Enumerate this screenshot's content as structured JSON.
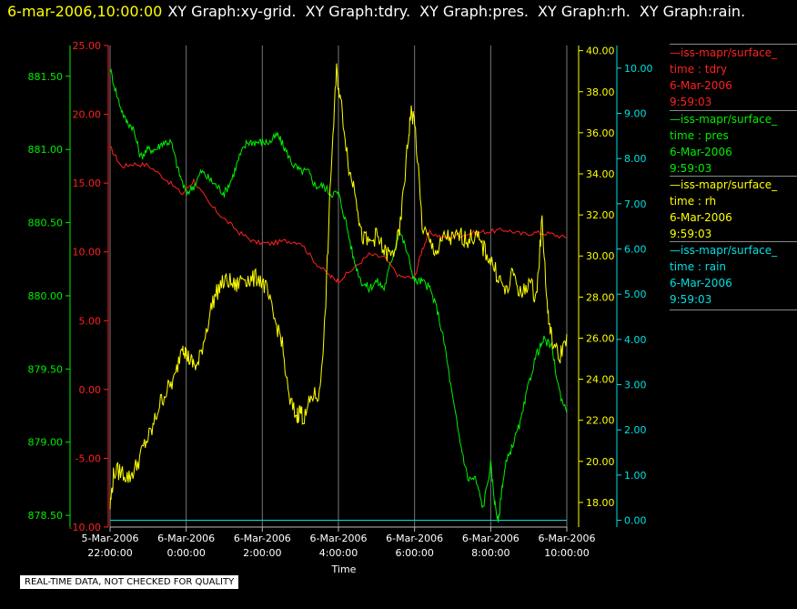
{
  "header": {
    "timestamp": "6-mar-2006,10:00:00",
    "graphs": [
      "XY Graph:xy-grid.",
      "XY Graph:tdry.",
      "XY Graph:pres.",
      "XY Graph:rh.",
      "XY Graph:rain."
    ]
  },
  "legend": [
    {
      "line": "—iss-mapr/surface_",
      "l1": "time : tdry",
      "l2": "6-Mar-2006",
      "l3": "9:59:03",
      "color": "#ff2020"
    },
    {
      "line": "—iss-mapr/surface_",
      "l1": "time : pres",
      "l2": "6-Mar-2006",
      "l3": "9:59:03",
      "color": "#00ee00"
    },
    {
      "line": "—iss-mapr/surface_",
      "l1": "time : rh",
      "l2": "6-Mar-2006",
      "l3": "9:59:03",
      "color": "#ffff00"
    },
    {
      "line": "—iss-mapr/surface_",
      "l1": "time : rain",
      "l2": "6-Mar-2006",
      "l3": "9:59:03",
      "color": "#00e0e0"
    }
  ],
  "quality_note": "REAL-TIME DATA, NOT CHECKED FOR QUALITY",
  "chart_data": {
    "type": "line",
    "xlabel": "Time",
    "x_ticks": [
      {
        "t": 0,
        "d": "5-Mar-2006",
        "h": "22:00:00"
      },
      {
        "t": 2,
        "d": "6-Mar-2006",
        "h": "0:00:00"
      },
      {
        "t": 4,
        "d": "6-Mar-2006",
        "h": "2:00:00"
      },
      {
        "t": 6,
        "d": "6-Mar-2006",
        "h": "4:00:00"
      },
      {
        "t": 8,
        "d": "6-Mar-2006",
        "h": "6:00:00"
      },
      {
        "t": 10,
        "d": "6-Mar-2006",
        "h": "8:00:00"
      },
      {
        "t": 12,
        "d": "6-Mar-2006",
        "h": "10:00:00"
      }
    ],
    "xlim": [
      0,
      12
    ],
    "grid": "vertical",
    "axes": [
      {
        "series": "pres",
        "side": "left",
        "color": "#00ee00",
        "ylim": [
          878.42,
          881.71
        ],
        "ticks": [
          "878.50",
          "879.00",
          "879.50",
          "880.00",
          "880.50",
          "881.00",
          "881.50"
        ]
      },
      {
        "series": "tdry",
        "side": "left",
        "color": "#ff2020",
        "ylim": [
          -10,
          25
        ],
        "ticks": [
          "-10.00",
          "-5.00",
          "0.00",
          "5.00",
          "10.00",
          "15.00",
          "20.00",
          "25.00"
        ]
      },
      {
        "series": "rh",
        "side": "right",
        "color": "#ffff00",
        "ylim": [
          16.8,
          40.25
        ],
        "ticks": [
          "18.00",
          "20.00",
          "22.00",
          "24.00",
          "26.00",
          "28.00",
          "30.00",
          "32.00",
          "34.00",
          "36.00",
          "38.00",
          "40.00"
        ]
      },
      {
        "series": "rain",
        "side": "right",
        "color": "#00e0e0",
        "ylim": [
          -0.15,
          10.5
        ],
        "ticks": [
          "0.00",
          "1.00",
          "2.00",
          "3.00",
          "4.00",
          "5.00",
          "6.00",
          "7.00",
          "8.00",
          "9.00",
          "10.00"
        ]
      }
    ],
    "series": [
      {
        "name": "tdry",
        "color": "#ff2020",
        "x": [
          0,
          0.3,
          0.6,
          1.0,
          1.5,
          1.9,
          2.2,
          2.6,
          3.0,
          3.4,
          3.8,
          4.2,
          4.6,
          5.0,
          5.4,
          5.8,
          6.0,
          6.4,
          6.8,
          7.2,
          7.6,
          8.0,
          8.2,
          8.4,
          8.8,
          9.2,
          9.6,
          10.0,
          10.4,
          10.8,
          11.2,
          11.6,
          12.0
        ],
        "values": [
          17.6,
          16.2,
          16.4,
          16.3,
          15.2,
          14.2,
          15.2,
          13.5,
          12.4,
          11.4,
          10.7,
          10.6,
          10.8,
          10.7,
          9.2,
          8.2,
          7.9,
          8.8,
          9.8,
          9.6,
          8.2,
          8.1,
          10.2,
          11.4,
          11.0,
          11.2,
          11.4,
          11.5,
          11.6,
          11.3,
          11.4,
          11.3,
          11.0
        ]
      },
      {
        "name": "pres",
        "color": "#00ee00",
        "x": [
          0,
          0.2,
          0.4,
          0.6,
          0.8,
          1.0,
          1.2,
          1.4,
          1.6,
          1.8,
          2.0,
          2.2,
          2.4,
          2.6,
          2.8,
          3.0,
          3.2,
          3.4,
          3.6,
          3.8,
          4.0,
          4.2,
          4.4,
          4.6,
          4.8,
          5.0,
          5.2,
          5.4,
          5.6,
          5.8,
          6.0,
          6.2,
          6.4,
          6.6,
          6.8,
          7.0,
          7.2,
          7.4,
          7.6,
          7.8,
          8.0,
          8.2,
          8.4,
          8.6,
          8.8,
          9.0,
          9.2,
          9.4,
          9.6,
          9.8,
          10.0,
          10.1,
          10.2,
          10.3,
          10.4,
          10.6,
          10.8,
          11.0,
          11.2,
          11.4,
          11.6,
          11.8,
          12.0
        ],
        "values": [
          881.55,
          881.35,
          881.2,
          881.15,
          880.95,
          881.0,
          881.0,
          881.05,
          881.05,
          880.85,
          880.7,
          880.75,
          880.85,
          880.8,
          880.75,
          880.7,
          880.8,
          880.95,
          881.05,
          881.05,
          881.05,
          881.05,
          881.1,
          881.0,
          880.9,
          880.85,
          880.85,
          880.75,
          880.75,
          880.7,
          880.7,
          880.5,
          880.25,
          880.1,
          880.05,
          880.1,
          880.05,
          880.25,
          880.45,
          880.3,
          880.1,
          880.1,
          880.05,
          879.9,
          879.65,
          879.3,
          879.0,
          878.75,
          878.75,
          878.55,
          878.85,
          878.6,
          878.45,
          878.7,
          878.85,
          879.0,
          879.15,
          879.4,
          879.6,
          879.7,
          879.65,
          879.35,
          879.2
        ]
      },
      {
        "name": "rh",
        "color": "#ffff00",
        "x": [
          0,
          0.1,
          0.3,
          0.5,
          0.7,
          0.9,
          1.1,
          1.3,
          1.5,
          1.7,
          1.9,
          2.0,
          2.15,
          2.3,
          2.5,
          2.7,
          2.9,
          3.1,
          3.3,
          3.5,
          3.7,
          3.9,
          4.1,
          4.3,
          4.5,
          4.7,
          4.9,
          5.0,
          5.1,
          5.3,
          5.5,
          5.65,
          5.8,
          5.95,
          6.1,
          6.3,
          6.45,
          6.6,
          6.8,
          7.0,
          7.2,
          7.4,
          7.6,
          7.8,
          7.9,
          8.0,
          8.2,
          8.4,
          8.6,
          8.8,
          9.0,
          9.2,
          9.4,
          9.6,
          9.8,
          10.0,
          10.2,
          10.4,
          10.6,
          10.8,
          11.0,
          11.2,
          11.35,
          11.5,
          11.6,
          11.8,
          12.0
        ],
        "values": [
          17.8,
          19.5,
          19.5,
          19.2,
          19.8,
          20.8,
          21.5,
          22.8,
          23.5,
          24.0,
          25.8,
          25.2,
          24.8,
          24.6,
          26.2,
          27.8,
          28.6,
          28.8,
          28.5,
          29.0,
          28.8,
          29.0,
          28.4,
          27.0,
          26.0,
          23.0,
          22.2,
          22.5,
          22.0,
          23.2,
          23.2,
          27.0,
          34.0,
          39.0,
          37.0,
          34.0,
          33.2,
          31.0,
          30.6,
          31.0,
          30.2,
          30.0,
          31.0,
          35.0,
          37.0,
          36.6,
          31.5,
          30.6,
          30.2,
          31.0,
          30.8,
          31.0,
          30.8,
          31.0,
          30.4,
          29.8,
          29.0,
          28.2,
          29.2,
          28.0,
          28.8,
          28.0,
          31.8,
          27.2,
          26.0,
          25.0,
          26.2
        ]
      },
      {
        "name": "rain",
        "color": "#00e0e0",
        "x": [
          0,
          12
        ],
        "values": [
          0,
          0
        ]
      }
    ]
  }
}
